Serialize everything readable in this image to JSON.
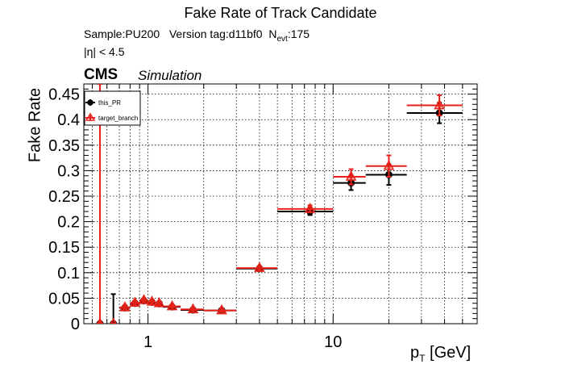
{
  "chart_data": {
    "type": "scatter",
    "title": "Fake Rate of Track Candidate",
    "subtitle": {
      "sample": "Sample:PU200",
      "version": "Version tag:d11bf0",
      "nevt_symbol": "N",
      "nevt_sub": "evt",
      "nevt_value": ":175"
    },
    "cut_label": "|η| < 4.5",
    "experiment": "CMS",
    "status": "Simulation",
    "xlabel": {
      "main": "p",
      "sub": "T",
      "unit": " [GeV]"
    },
    "ylabel": "Fake Rate",
    "x_scale": "log",
    "xlim": [
      0.45,
      60
    ],
    "ylim": [
      0,
      0.47
    ],
    "xticks": [
      {
        "value": 1,
        "label": "1"
      },
      {
        "value": 10,
        "label": "10"
      }
    ],
    "yticks": [
      {
        "value": 0,
        "label": "0"
      },
      {
        "value": 0.05,
        "label": "0.05"
      },
      {
        "value": 0.1,
        "label": "0.1"
      },
      {
        "value": 0.15,
        "label": "0.15"
      },
      {
        "value": 0.2,
        "label": "0.2"
      },
      {
        "value": 0.25,
        "label": "0.25"
      },
      {
        "value": 0.3,
        "label": "0.3"
      },
      {
        "value": 0.35,
        "label": "0.35"
      },
      {
        "value": 0.4,
        "label": "0.4"
      },
      {
        "value": 0.45,
        "label": "0.45"
      }
    ],
    "grid": true,
    "legend_position": "top-left",
    "series": [
      {
        "name": "this_PR",
        "color": "#000000",
        "marker": "filled-circle",
        "points": [
          {
            "x": 0.55,
            "x_lo": 0.53,
            "x_hi": 0.57,
            "y": 0.0,
            "y_lo": 0.0,
            "y_hi": 0.0
          },
          {
            "x": 0.65,
            "x_lo": 0.63,
            "x_hi": 0.67,
            "y": 0.0,
            "y_lo": 0.0,
            "y_hi": 0.058
          },
          {
            "x": 0.75,
            "x_lo": 0.7,
            "x_hi": 0.8,
            "y": 0.031,
            "y_lo": 0.027,
            "y_hi": 0.035
          },
          {
            "x": 0.85,
            "x_lo": 0.8,
            "x_hi": 0.9,
            "y": 0.04,
            "y_lo": 0.036,
            "y_hi": 0.044
          },
          {
            "x": 0.95,
            "x_lo": 0.9,
            "x_hi": 1.0,
            "y": 0.045,
            "y_lo": 0.041,
            "y_hi": 0.049
          },
          {
            "x": 1.05,
            "x_lo": 1.0,
            "x_hi": 1.1,
            "y": 0.042,
            "y_lo": 0.038,
            "y_hi": 0.046
          },
          {
            "x": 1.15,
            "x_lo": 1.1,
            "x_hi": 1.2,
            "y": 0.039,
            "y_lo": 0.035,
            "y_hi": 0.043
          },
          {
            "x": 1.35,
            "x_lo": 1.2,
            "x_hi": 1.5,
            "y": 0.033,
            "y_lo": 0.03,
            "y_hi": 0.036
          },
          {
            "x": 1.75,
            "x_lo": 1.5,
            "x_hi": 2.0,
            "y": 0.027,
            "y_lo": 0.024,
            "y_hi": 0.03
          },
          {
            "x": 2.5,
            "x_lo": 2.0,
            "x_hi": 3.0,
            "y": 0.026,
            "y_lo": 0.023,
            "y_hi": 0.029
          },
          {
            "x": 4.0,
            "x_lo": 3.0,
            "x_hi": 5.0,
            "y": 0.108,
            "y_lo": 0.104,
            "y_hi": 0.112
          },
          {
            "x": 7.5,
            "x_lo": 5.0,
            "x_hi": 10.0,
            "y": 0.22,
            "y_lo": 0.213,
            "y_hi": 0.227
          },
          {
            "x": 12.5,
            "x_lo": 10.0,
            "x_hi": 15.0,
            "y": 0.276,
            "y_lo": 0.262,
            "y_hi": 0.29
          },
          {
            "x": 20.0,
            "x_lo": 15.0,
            "x_hi": 25.0,
            "y": 0.292,
            "y_lo": 0.272,
            "y_hi": 0.312
          },
          {
            "x": 37.5,
            "x_lo": 25.0,
            "x_hi": 50.0,
            "y": 0.413,
            "y_lo": 0.393,
            "y_hi": 0.433
          }
        ]
      },
      {
        "name": "target_branch",
        "color": "#e8221a",
        "marker": "open-triangle",
        "points": [
          {
            "x": 0.55,
            "x_lo": 0.53,
            "x_hi": 0.57,
            "y": 0.0,
            "y_lo": 0.0,
            "y_hi": 0.47
          },
          {
            "x": 0.65,
            "x_lo": 0.63,
            "x_hi": 0.67,
            "y": 0.0,
            "y_lo": 0.0,
            "y_hi": 0.0
          },
          {
            "x": 0.75,
            "x_lo": 0.7,
            "x_hi": 0.8,
            "y": 0.032,
            "y_lo": 0.028,
            "y_hi": 0.036
          },
          {
            "x": 0.85,
            "x_lo": 0.8,
            "x_hi": 0.9,
            "y": 0.041,
            "y_lo": 0.037,
            "y_hi": 0.045
          },
          {
            "x": 0.95,
            "x_lo": 0.9,
            "x_hi": 1.0,
            "y": 0.046,
            "y_lo": 0.042,
            "y_hi": 0.05
          },
          {
            "x": 1.05,
            "x_lo": 1.0,
            "x_hi": 1.1,
            "y": 0.043,
            "y_lo": 0.039,
            "y_hi": 0.047
          },
          {
            "x": 1.15,
            "x_lo": 1.1,
            "x_hi": 1.2,
            "y": 0.04,
            "y_lo": 0.036,
            "y_hi": 0.044
          },
          {
            "x": 1.35,
            "x_lo": 1.2,
            "x_hi": 1.5,
            "y": 0.034,
            "y_lo": 0.031,
            "y_hi": 0.037
          },
          {
            "x": 1.75,
            "x_lo": 1.5,
            "x_hi": 2.0,
            "y": 0.028,
            "y_lo": 0.025,
            "y_hi": 0.031
          },
          {
            "x": 2.5,
            "x_lo": 2.0,
            "x_hi": 3.0,
            "y": 0.026,
            "y_lo": 0.023,
            "y_hi": 0.029
          },
          {
            "x": 4.0,
            "x_lo": 3.0,
            "x_hi": 5.0,
            "y": 0.109,
            "y_lo": 0.105,
            "y_hi": 0.113
          },
          {
            "x": 7.5,
            "x_lo": 5.0,
            "x_hi": 10.0,
            "y": 0.225,
            "y_lo": 0.218,
            "y_hi": 0.232
          },
          {
            "x": 12.5,
            "x_lo": 10.0,
            "x_hi": 15.0,
            "y": 0.288,
            "y_lo": 0.273,
            "y_hi": 0.303
          },
          {
            "x": 20.0,
            "x_lo": 15.0,
            "x_hi": 25.0,
            "y": 0.309,
            "y_lo": 0.288,
            "y_hi": 0.33
          },
          {
            "x": 37.5,
            "x_lo": 25.0,
            "x_hi": 50.0,
            "y": 0.428,
            "y_lo": 0.408,
            "y_hi": 0.448
          }
        ]
      }
    ]
  }
}
